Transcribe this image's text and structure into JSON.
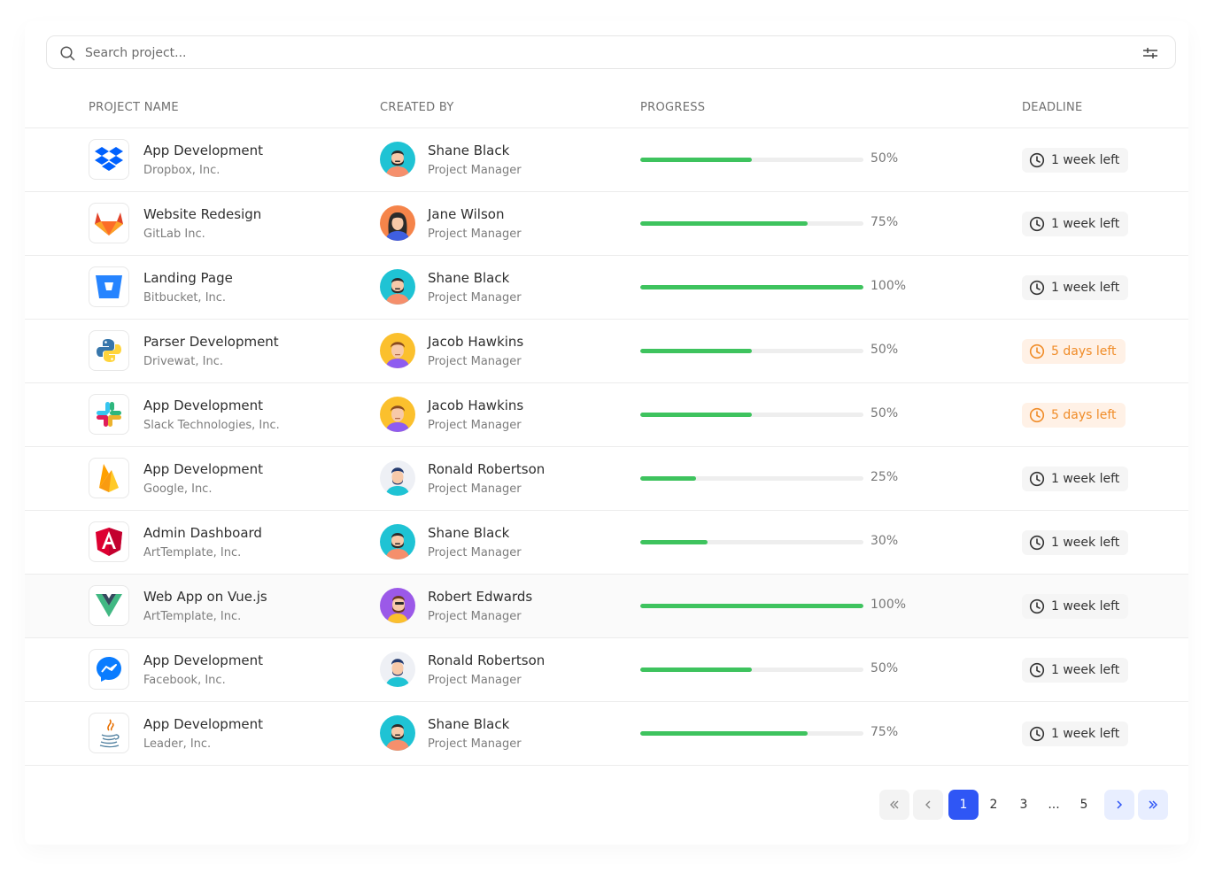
{
  "search": {
    "placeholder": "Search project..."
  },
  "columns": {
    "project": "PROJECT NAME",
    "creator": "CREATED BY",
    "progress": "PROGRESS",
    "deadline": "DEADLINE"
  },
  "rows": [
    {
      "name": "App Development",
      "company": "Dropbox, Inc.",
      "logo": "dropbox-logo",
      "user": "Shane Black",
      "role": "Project Manager",
      "avatar": "shane",
      "progress": 50,
      "progress_label": "50%",
      "deadline": "1 week left",
      "warn": false
    },
    {
      "name": "Website Redesign",
      "company": "GitLab Inc.",
      "logo": "gitlab-logo",
      "user": "Jane Wilson",
      "role": "Project Manager",
      "avatar": "jane",
      "progress": 75,
      "progress_label": "75%",
      "deadline": "1 week left",
      "warn": false
    },
    {
      "name": "Landing Page",
      "company": "Bitbucket, Inc.",
      "logo": "bitbucket-logo",
      "user": "Shane Black",
      "role": "Project Manager",
      "avatar": "shane",
      "progress": 100,
      "progress_label": "100%",
      "deadline": "1 week left",
      "warn": false
    },
    {
      "name": "Parser Development",
      "company": "Drivewat, Inc.",
      "logo": "python-logo",
      "user": "Jacob Hawkins",
      "role": "Project Manager",
      "avatar": "jacob",
      "progress": 50,
      "progress_label": "50%",
      "deadline": "5 days left",
      "warn": true
    },
    {
      "name": "App Development",
      "company": "Slack Technologies, Inc.",
      "logo": "slack-logo",
      "user": "Jacob Hawkins",
      "role": "Project Manager",
      "avatar": "jacob",
      "progress": 50,
      "progress_label": "50%",
      "deadline": "5 days left",
      "warn": true
    },
    {
      "name": "App Development",
      "company": "Google, Inc.",
      "logo": "firebase-logo",
      "user": "Ronald Robertson",
      "role": "Project Manager",
      "avatar": "ronald",
      "progress": 25,
      "progress_label": "25%",
      "deadline": "1 week left",
      "warn": false
    },
    {
      "name": "Admin Dashboard",
      "company": "ArtTemplate, Inc.",
      "logo": "angular-logo",
      "user": "Shane Black",
      "role": "Project Manager",
      "avatar": "shane",
      "progress": 30,
      "progress_label": "30%",
      "deadline": "1 week left",
      "warn": false
    },
    {
      "name": "Web App on Vue.js",
      "company": "ArtTemplate, Inc.",
      "logo": "vue-logo",
      "user": "Robert Edwards",
      "role": "Project Manager",
      "avatar": "robert",
      "progress": 100,
      "progress_label": "100%",
      "deadline": "1 week left",
      "warn": false
    },
    {
      "name": "App Development",
      "company": "Facebook, Inc.",
      "logo": "messenger-logo",
      "user": "Ronald Robertson",
      "role": "Project Manager",
      "avatar": "ronald",
      "progress": 50,
      "progress_label": "50%",
      "deadline": "1 week left",
      "warn": false
    },
    {
      "name": "App Development",
      "company": "Leader, Inc.",
      "logo": "java-logo",
      "user": "Shane Black",
      "role": "Project Manager",
      "avatar": "shane",
      "progress": 75,
      "progress_label": "75%",
      "deadline": "1 week left",
      "warn": false
    }
  ],
  "pagination": {
    "pages": [
      "1",
      "2",
      "3",
      "...",
      "5"
    ],
    "current": "1"
  },
  "colors": {
    "accent": "#2f56f5",
    "progress": "#3ec35e",
    "warn": "#f08c28"
  }
}
